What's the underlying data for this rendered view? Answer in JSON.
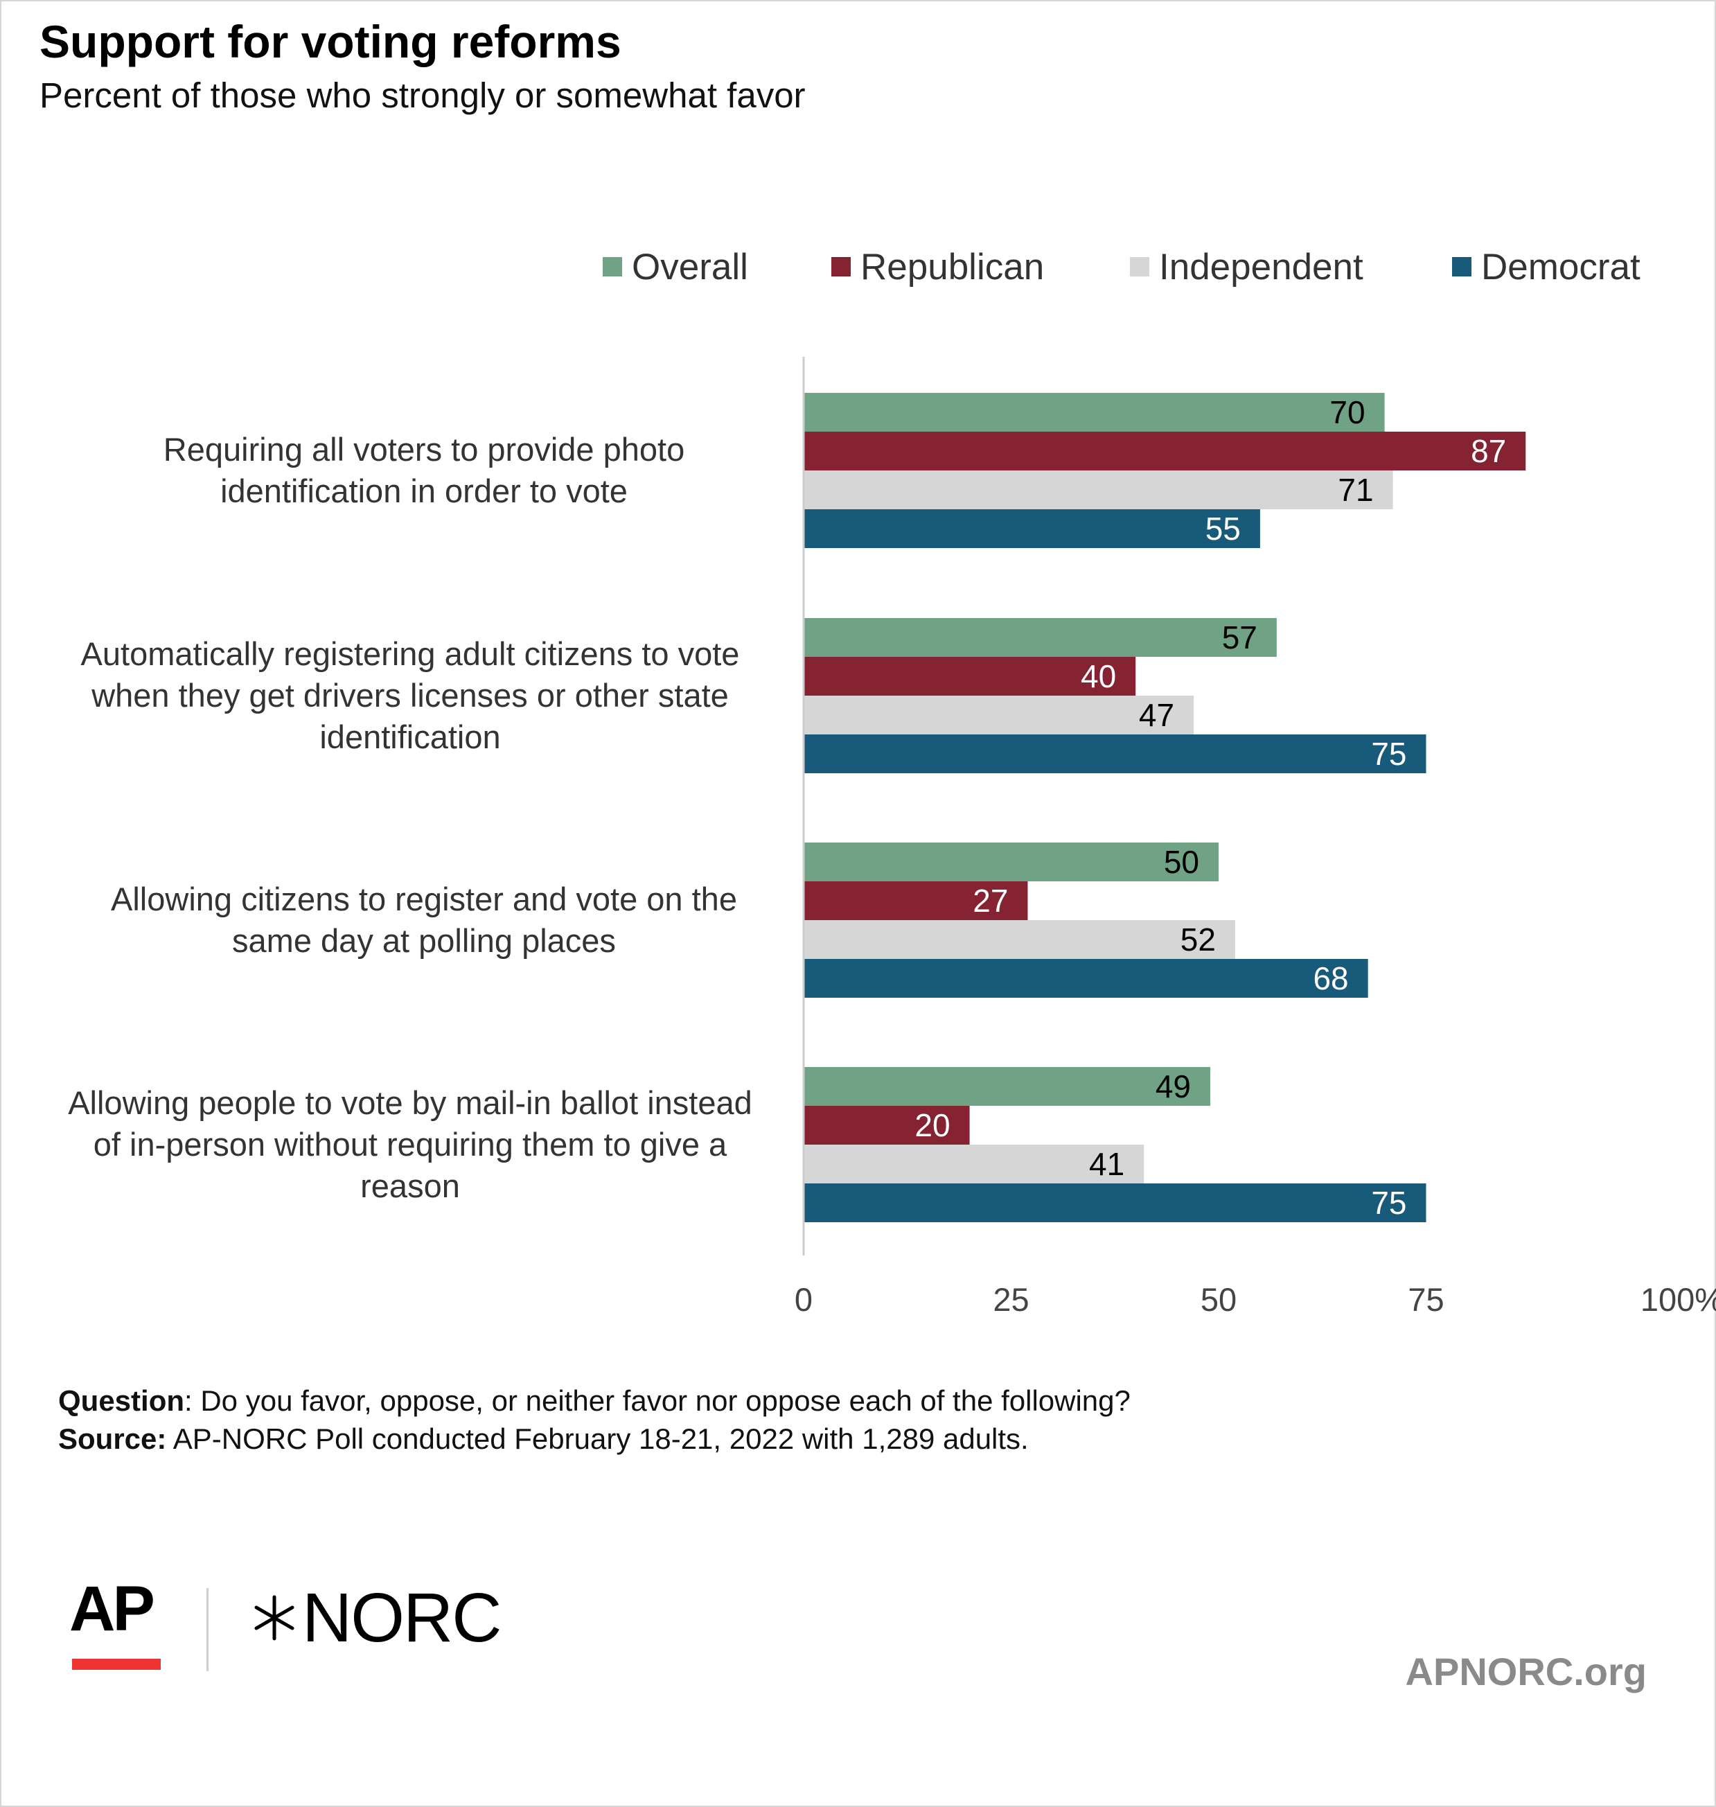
{
  "title": "Support for voting reforms",
  "subtitle": "Percent of those who strongly or somewhat favor",
  "colors": {
    "overall": "#70a285",
    "republican": "#862332",
    "independent": "#d6d6d6",
    "democrat": "#175a7a",
    "axis": "#cccccc"
  },
  "legend": {
    "items": [
      {
        "label": "Overall"
      },
      {
        "label": "Republican"
      },
      {
        "label": "Independent"
      },
      {
        "label": "Democrat"
      }
    ]
  },
  "chart_data": {
    "type": "bar",
    "orientation": "horizontal",
    "categories": [
      [
        "Requiring all voters to provide photo",
        "identification in order to vote"
      ],
      [
        "Automatically registering adult citizens to vote",
        "when they get drivers licenses or other state",
        "identification"
      ],
      [
        "Allowing citizens to register and vote on the",
        "same day at polling places"
      ],
      [
        "Allowing people to vote by mail-in ballot instead",
        "of in-person without requiring them to give a",
        "reason"
      ]
    ],
    "series": [
      {
        "name": "Overall",
        "values": [
          70,
          57,
          50,
          49
        ]
      },
      {
        "name": "Republican",
        "values": [
          87,
          40,
          27,
          20
        ]
      },
      {
        "name": "Independent",
        "values": [
          71,
          47,
          52,
          41
        ]
      },
      {
        "name": "Democrat",
        "values": [
          55,
          75,
          68,
          75
        ]
      }
    ],
    "xlim": [
      0,
      100
    ],
    "xticks": [
      "0",
      "25",
      "50",
      "75",
      "100%"
    ],
    "legend_position": "top-right",
    "grid": false
  },
  "footer": {
    "question_label": "Question",
    "question_text": ": Do you favor, oppose, or neither favor nor oppose each of the following?",
    "source_label": "Source:",
    "source_text": " AP-NORC Poll conducted February 18-21, 2022 with 1,289 adults."
  },
  "logos": {
    "ap": "AP",
    "norc": "NORC",
    "site": "APNORC.org"
  }
}
